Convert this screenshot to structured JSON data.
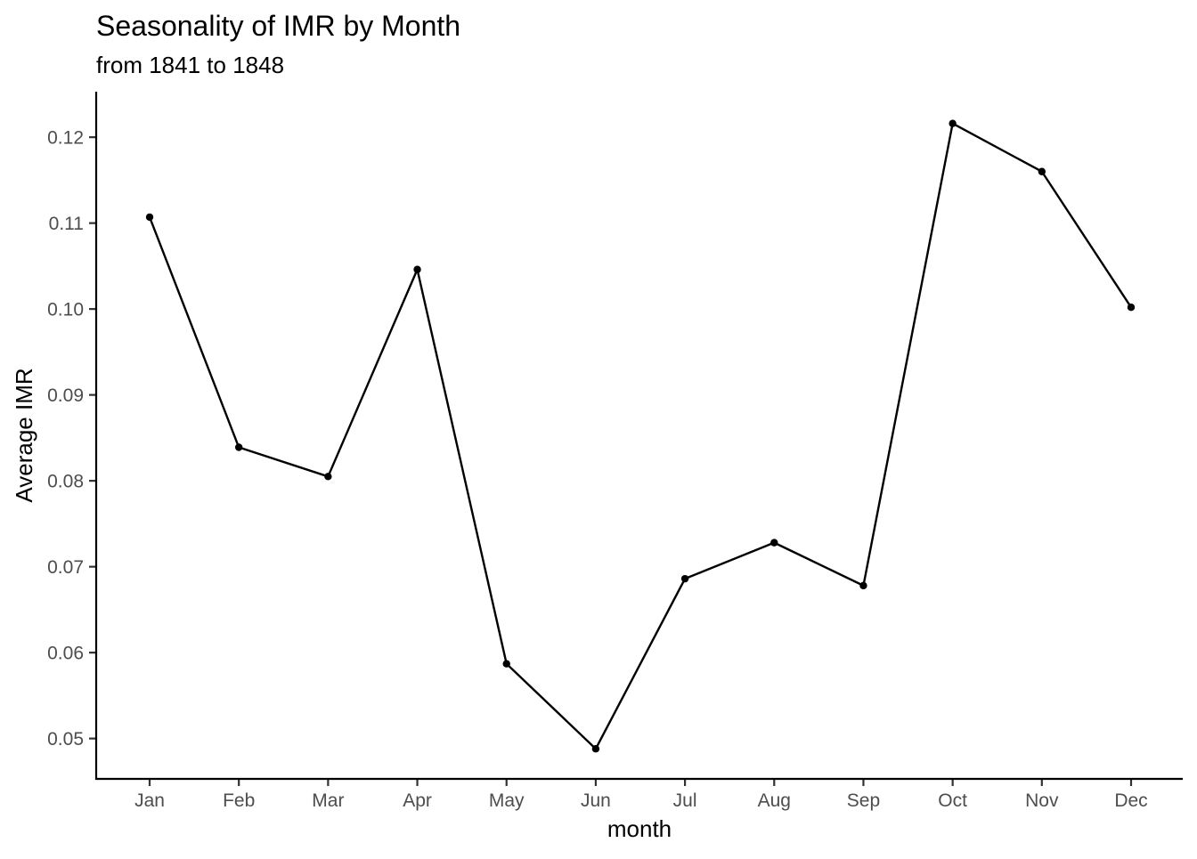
{
  "chart_data": {
    "type": "line",
    "title": "Seasonality of IMR by Month",
    "subtitle": "from 1841 to 1848",
    "xlabel": "month",
    "ylabel": "Average IMR",
    "categories": [
      "Jan",
      "Feb",
      "Mar",
      "Apr",
      "May",
      "Jun",
      "Jul",
      "Aug",
      "Sep",
      "Oct",
      "Nov",
      "Dec"
    ],
    "series": [
      {
        "values": [
          0.1107,
          0.0839,
          0.0805,
          0.1046,
          0.0587,
          0.0488,
          0.0686,
          0.0728,
          0.0678,
          0.1216,
          0.116,
          0.1002
        ]
      }
    ],
    "ylim": [
      0.0453,
      0.1253
    ],
    "yticks": [
      0.05,
      0.06,
      0.07,
      0.08,
      0.09,
      0.1,
      0.11,
      0.12
    ],
    "ytick_labels": [
      "0.05",
      "0.06",
      "0.07",
      "0.08",
      "0.09",
      "0.10",
      "0.11",
      "0.12"
    ],
    "grid": false,
    "legend": "none",
    "line_color": "#000000",
    "point_color": "#000000"
  }
}
